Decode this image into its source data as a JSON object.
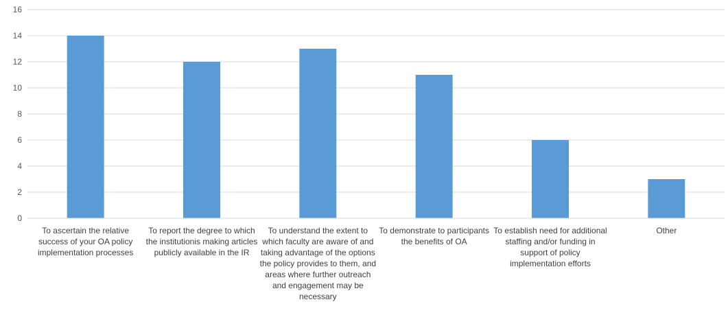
{
  "chart_data": {
    "type": "bar",
    "title": "",
    "xlabel": "",
    "ylabel": "",
    "ylim": [
      0,
      16
    ],
    "yticks": [
      0,
      2,
      4,
      6,
      8,
      10,
      12,
      14,
      16
    ],
    "grid": true,
    "legend": "none",
    "bar_color": "#5b9bd5",
    "categories": [
      "To ascertain the relative success of your OA policy implementation processes",
      "To report the degree to which the institutionis making articles publicly available in the IR",
      "To understand the extent to which faculty are aware of and taking advantage of the options the policy provides to them, and areas where further outreach and engagement may be necessary",
      "To demonstrate to participants the benefits of OA",
      "To establish need for additional staffing and/or funding in support of policy implementation efforts",
      "Other"
    ],
    "values": [
      14,
      12,
      13,
      11,
      6,
      3
    ]
  }
}
